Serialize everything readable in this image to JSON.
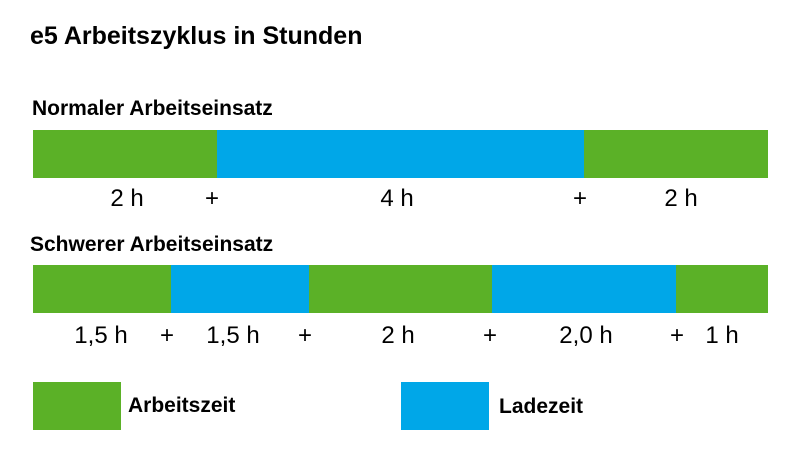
{
  "title": "e5 Arbeitszyklus in Stunden",
  "colors": {
    "work": "#5bb127",
    "charge": "#00a7e8"
  },
  "rows": [
    {
      "heading": "Normaler Arbeitseinsatz",
      "segments": [
        {
          "type": "work",
          "hours": 2
        },
        {
          "type": "charge",
          "hours": 4
        },
        {
          "type": "work",
          "hours": 2
        }
      ],
      "labels": [
        "2 h",
        "+",
        "4 h",
        "+",
        "2 h"
      ]
    },
    {
      "heading": "Schwerer Arbeitseinsatz",
      "segments": [
        {
          "type": "work",
          "hours": 1.5
        },
        {
          "type": "charge",
          "hours": 1.5
        },
        {
          "type": "work",
          "hours": 2
        },
        {
          "type": "charge",
          "hours": 2
        },
        {
          "type": "work",
          "hours": 1
        }
      ],
      "labels": [
        "1,5 h",
        "+",
        "1,5 h",
        "+",
        "2 h",
        "+",
        "2,0 h",
        "+",
        "1 h"
      ]
    }
  ],
  "legend": [
    {
      "type": "work",
      "label": "Arbeitszeit"
    },
    {
      "type": "charge",
      "label": "Ladezeit"
    }
  ]
}
